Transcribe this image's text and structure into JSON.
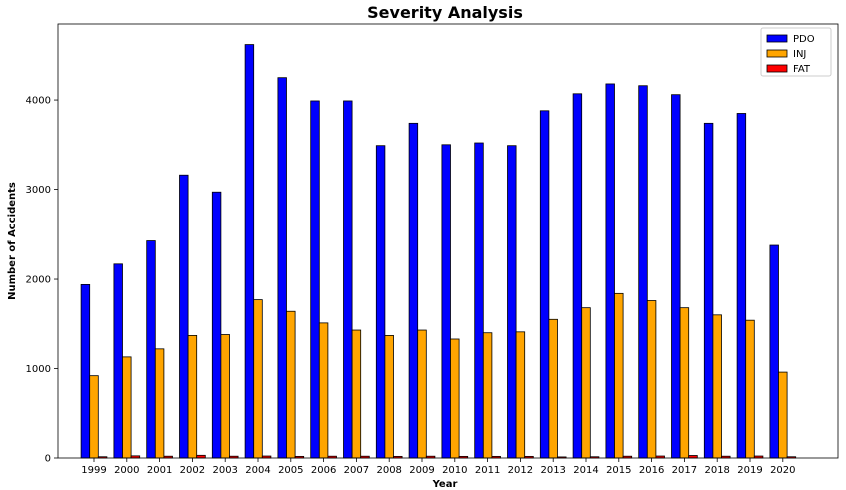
{
  "chart_data": {
    "type": "bar",
    "title": "Severity Analysis",
    "xlabel": "Year",
    "ylabel": "Number of Accidents",
    "ylim": [
      0,
      4850
    ],
    "yticks": [
      0,
      1000,
      2000,
      3000,
      4000
    ],
    "grid": false,
    "legend_position": "top-right",
    "categories": [
      "1999",
      "2000",
      "2001",
      "2002",
      "2003",
      "2004",
      "2005",
      "2006",
      "2007",
      "2008",
      "2009",
      "2010",
      "2011",
      "2012",
      "2013",
      "2014",
      "2015",
      "2016",
      "2017",
      "2018",
      "2019",
      "2020"
    ],
    "series": [
      {
        "name": "PDO",
        "color": "#0000ff",
        "values": [
          1940,
          2170,
          2430,
          3160,
          2970,
          4620,
          4250,
          3990,
          3990,
          3490,
          3740,
          3500,
          3520,
          3490,
          3880,
          4070,
          4180,
          4160,
          4060,
          3740,
          3850,
          2380
        ]
      },
      {
        "name": "INJ",
        "color": "#ffa500",
        "values": [
          920,
          1130,
          1220,
          1370,
          1380,
          1770,
          1640,
          1510,
          1430,
          1370,
          1430,
          1330,
          1400,
          1410,
          1550,
          1680,
          1840,
          1760,
          1680,
          1600,
          1540,
          960
        ]
      },
      {
        "name": "FAT",
        "color": "#ff0000",
        "values": [
          14,
          24,
          20,
          30,
          20,
          22,
          18,
          20,
          20,
          18,
          20,
          18,
          18,
          18,
          12,
          14,
          20,
          22,
          28,
          20,
          22,
          14
        ]
      }
    ]
  }
}
